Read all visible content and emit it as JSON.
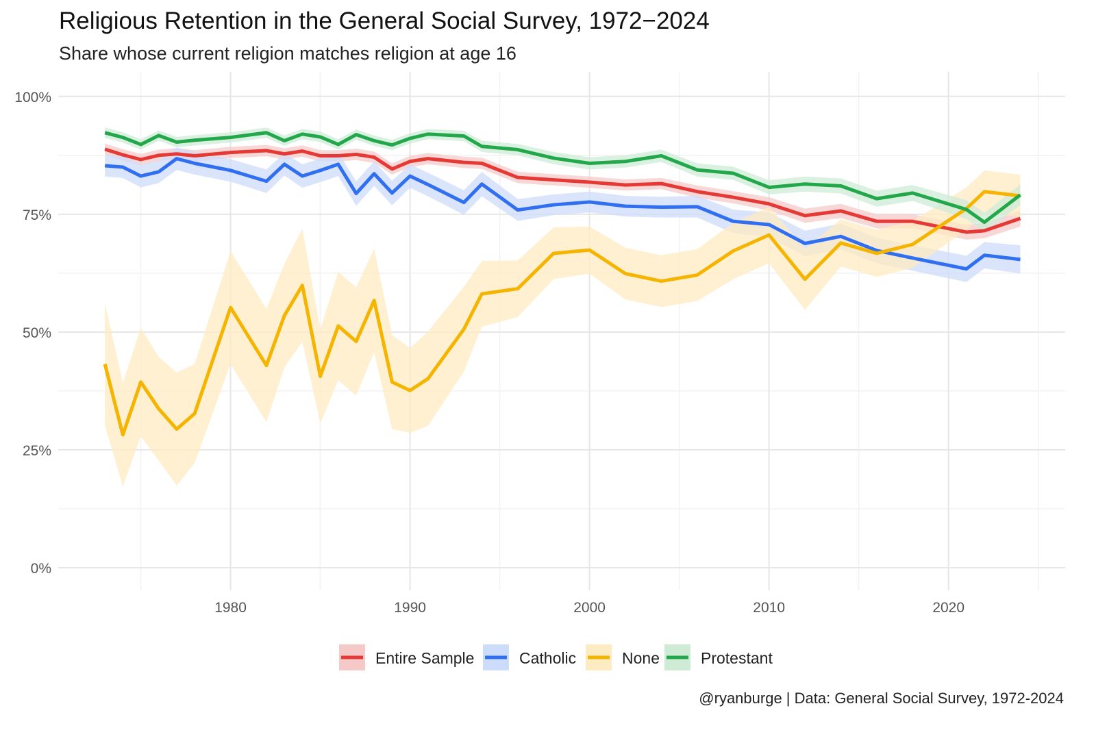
{
  "chart_data": {
    "type": "line",
    "title": "Religious Retention in the General Social Survey, 1972−2024",
    "subtitle": "Share whose current religion matches religion at age 16",
    "caption": "@ryanburge | Data: General Social Survey, 1972-2024",
    "xlabel": "",
    "ylabel": "",
    "xlim": [
      1970.4,
      2026.5
    ],
    "ylim": [
      -4.8,
      105.2
    ],
    "x_ticks": [
      1980,
      1990,
      2000,
      2010,
      2020
    ],
    "x_tick_labels": [
      "1980",
      "1990",
      "2000",
      "2010",
      "2020"
    ],
    "y_ticks": [
      0,
      25,
      50,
      75,
      100
    ],
    "y_tick_labels": [
      "0%",
      "25%",
      "50%",
      "75%",
      "100%"
    ],
    "grid": true,
    "legend_position": "bottom",
    "x": [
      1973,
      1974,
      1975,
      1976,
      1977,
      1978,
      1980,
      1982,
      1983,
      1984,
      1985,
      1986,
      1987,
      1988,
      1989,
      1990,
      1991,
      1993,
      1994,
      1996,
      1998,
      2000,
      2002,
      2004,
      2006,
      2008,
      2010,
      2012,
      2014,
      2016,
      2018,
      2021,
      2022,
      2024
    ],
    "series": [
      {
        "name": "Entire Sample",
        "color": "#e53935",
        "band_color": "#f6c9c9",
        "values": [
          88.8,
          87.6,
          86.6,
          87.5,
          87.8,
          87.4,
          88.1,
          88.5,
          87.8,
          88.4,
          87.4,
          87.4,
          87.7,
          87.1,
          84.6,
          86.2,
          86.8,
          86.0,
          85.8,
          82.8,
          82.3,
          81.8,
          81.2,
          81.5,
          79.8,
          78.6,
          77.2,
          74.7,
          75.7,
          73.5,
          73.5,
          71.2,
          71.5,
          74.1
        ],
        "ci_halfwidth": [
          1.2,
          1.2,
          1.2,
          1.2,
          1.2,
          1.2,
          1.2,
          1.2,
          1.2,
          1.2,
          1.2,
          1.2,
          1.2,
          1.2,
          1.2,
          1.2,
          1.2,
          1.2,
          1.2,
          1.2,
          1.2,
          1.2,
          1.2,
          1.2,
          1.3,
          1.3,
          1.4,
          1.5,
          1.5,
          1.5,
          1.5,
          1.6,
          1.6,
          1.7
        ]
      },
      {
        "name": "Catholic",
        "color": "#2f6ff0",
        "band_color": "#cddcfb",
        "values": [
          85.3,
          85.0,
          83.1,
          84.0,
          86.8,
          85.8,
          84.3,
          82.0,
          85.6,
          83.1,
          84.3,
          85.6,
          79.4,
          83.6,
          79.5,
          83.1,
          81.3,
          77.5,
          81.4,
          75.9,
          77.0,
          77.6,
          76.7,
          76.5,
          76.6,
          73.5,
          72.8,
          68.8,
          70.3,
          67.3,
          65.7,
          63.4,
          66.3,
          65.4
        ],
        "ci_halfwidth": [
          2.3,
          2.3,
          2.4,
          2.4,
          2.4,
          2.4,
          2.4,
          2.5,
          2.4,
          2.5,
          2.5,
          2.5,
          2.6,
          2.6,
          2.6,
          2.5,
          2.5,
          2.6,
          2.6,
          2.3,
          2.2,
          2.2,
          2.2,
          2.2,
          2.3,
          2.5,
          2.6,
          2.7,
          2.7,
          2.7,
          2.7,
          2.8,
          2.8,
          3.0
        ]
      },
      {
        "name": "None",
        "color": "#f5b400",
        "band_color": "#fdebc2",
        "values": [
          43.2,
          28.2,
          39.4,
          33.7,
          29.4,
          32.7,
          55.2,
          42.9,
          53.5,
          59.9,
          40.6,
          51.3,
          48.0,
          56.7,
          39.4,
          37.6,
          40.1,
          50.6,
          58.1,
          59.2,
          66.7,
          67.4,
          62.4,
          60.8,
          62.1,
          67.2,
          70.6,
          61.2,
          68.9,
          66.7,
          68.6,
          76.2,
          79.8,
          78.9
        ],
        "ci_halfwidth": [
          13,
          11,
          11.5,
          11,
          12,
          10.5,
          12,
          12,
          11,
          12,
          10,
          11.5,
          11.5,
          11,
          10,
          9,
          10,
          9,
          7,
          6,
          5.5,
          5,
          5.5,
          5.5,
          5.5,
          6,
          6,
          6.5,
          5,
          5,
          5,
          4.5,
          4.5,
          4.5
        ]
      },
      {
        "name": "Protestant",
        "color": "#22a84a",
        "band_color": "#cdebd5",
        "values": [
          92.3,
          91.3,
          89.8,
          91.7,
          90.3,
          90.7,
          91.3,
          92.3,
          90.6,
          92.0,
          91.4,
          89.8,
          91.9,
          90.6,
          89.7,
          91.1,
          92.0,
          91.6,
          89.4,
          88.7,
          86.9,
          85.8,
          86.2,
          87.4,
          84.4,
          83.7,
          80.7,
          81.4,
          81.0,
          78.3,
          79.5,
          76.0,
          73.3,
          79.1
        ],
        "ci_halfwidth": [
          1.1,
          1.1,
          1.1,
          1.1,
          1.1,
          1.1,
          1.1,
          1.1,
          1.1,
          1.1,
          1.1,
          1.1,
          1.1,
          1.1,
          1.1,
          1.1,
          1.1,
          1.1,
          1.2,
          1.2,
          1.3,
          1.3,
          1.3,
          1.3,
          1.4,
          1.4,
          1.5,
          1.6,
          1.6,
          1.7,
          1.7,
          2.0,
          2.0,
          2.2
        ]
      }
    ]
  }
}
